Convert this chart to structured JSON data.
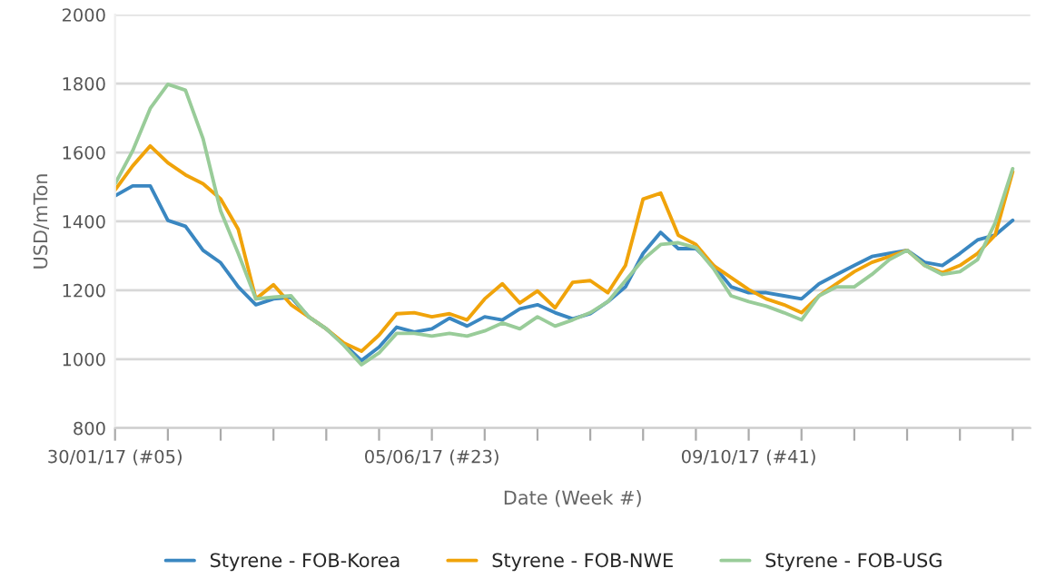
{
  "chart_data": {
    "type": "line",
    "xlabel": "Date (Week #)",
    "ylabel": "USD/mTon",
    "x": [
      "2017-01-30",
      "2017-02-06",
      "2017-02-13",
      "2017-02-20",
      "2017-02-27",
      "2017-03-06",
      "2017-03-13",
      "2017-03-20",
      "2017-03-27",
      "2017-04-03",
      "2017-04-10",
      "2017-04-17",
      "2017-04-24",
      "2017-05-01",
      "2017-05-08",
      "2017-05-15",
      "2017-05-22",
      "2017-05-29",
      "2017-06-05",
      "2017-06-12",
      "2017-06-19",
      "2017-06-26",
      "2017-07-03",
      "2017-07-10",
      "2017-07-17",
      "2017-07-24",
      "2017-07-31",
      "2017-08-07",
      "2017-08-14",
      "2017-08-21",
      "2017-08-28",
      "2017-09-04",
      "2017-09-11",
      "2017-09-18",
      "2017-09-25",
      "2017-10-02",
      "2017-10-09",
      "2017-10-16",
      "2017-10-23",
      "2017-10-30",
      "2017-11-06",
      "2017-11-13",
      "2017-11-20",
      "2017-11-27",
      "2017-12-04",
      "2017-12-11",
      "2017-12-18",
      "2017-12-25",
      "2018-01-01",
      "2018-01-08",
      "2018-01-15",
      "2018-01-22"
    ],
    "series": [
      {
        "name": "Styrene - FOB-Korea",
        "color": "#3a87c1",
        "values": [
          1474,
          1503,
          1503,
          1403,
          1386,
          1316,
          1280,
          1210,
          1158,
          1175,
          1180,
          1123,
          1088,
          1044,
          996,
          1035,
          1093,
          1079,
          1088,
          1119,
          1096,
          1123,
          1114,
          1146,
          1158,
          1135,
          1117,
          1132,
          1167,
          1210,
          1307,
          1368,
          1321,
          1321,
          1272,
          1210,
          1193,
          1193,
          1184,
          1175,
          1219,
          1246,
          1272,
          1298,
          1307,
          1316,
          1281,
          1272,
          1307,
          1346,
          1360,
          1403
        ]
      },
      {
        "name": "Styrene - FOB-NWE",
        "color": "#f0a30a",
        "values": [
          1491,
          1561,
          1619,
          1570,
          1535,
          1509,
          1465,
          1377,
          1175,
          1216,
          1158,
          1123,
          1088,
          1047,
          1023,
          1070,
          1132,
          1135,
          1123,
          1132,
          1114,
          1175,
          1219,
          1163,
          1198,
          1149,
          1223,
          1228,
          1193,
          1272,
          1465,
          1482,
          1360,
          1333,
          1272,
          1237,
          1202,
          1175,
          1158,
          1135,
          1184,
          1219,
          1254,
          1281,
          1298,
          1316,
          1272,
          1251,
          1272,
          1307,
          1360,
          1544
        ]
      },
      {
        "name": "Styrene - FOB-USG",
        "color": "#99cc99",
        "values": [
          1509,
          1605,
          1728,
          1798,
          1781,
          1640,
          1430,
          1307,
          1175,
          1180,
          1184,
          1123,
          1088,
          1040,
          984,
          1018,
          1075,
          1075,
          1067,
          1075,
          1067,
          1082,
          1105,
          1088,
          1123,
          1096,
          1114,
          1135,
          1167,
          1228,
          1289,
          1333,
          1338,
          1324,
          1263,
          1184,
          1167,
          1154,
          1135,
          1114,
          1184,
          1210,
          1210,
          1246,
          1289,
          1316,
          1272,
          1246,
          1254,
          1289,
          1395,
          1553
        ]
      }
    ],
    "xlim": [
      "2017-01-30",
      "2018-01-29"
    ],
    "xticks": [
      {
        "value": "2017-01-30",
        "label": "30/01/17 (#05)"
      },
      {
        "value": "2017-02-20",
        "label": null
      },
      {
        "value": "2017-03-13",
        "label": null
      },
      {
        "value": "2017-04-03",
        "label": null
      },
      {
        "value": "2017-04-24",
        "label": null
      },
      {
        "value": "2017-05-15",
        "label": null
      },
      {
        "value": "2017-06-05",
        "label": "05/06/17 (#23)"
      },
      {
        "value": "2017-06-26",
        "label": null
      },
      {
        "value": "2017-07-17",
        "label": null
      },
      {
        "value": "2017-08-07",
        "label": null
      },
      {
        "value": "2017-08-28",
        "label": null
      },
      {
        "value": "2017-09-18",
        "label": null
      },
      {
        "value": "2017-10-09",
        "label": "09/10/17 (#41)"
      },
      {
        "value": "2017-10-30",
        "label": null
      },
      {
        "value": "2017-11-20",
        "label": null
      },
      {
        "value": "2017-12-11",
        "label": null
      },
      {
        "value": "2018-01-01",
        "label": null
      },
      {
        "value": "2018-01-22",
        "label": null
      }
    ],
    "ylim": [
      800,
      2000
    ],
    "yticks": [
      800,
      1000,
      1200,
      1400,
      1600,
      1800,
      2000
    ],
    "grid": "y",
    "legend": "bottom",
    "marker": "none",
    "line_style": "solid"
  }
}
